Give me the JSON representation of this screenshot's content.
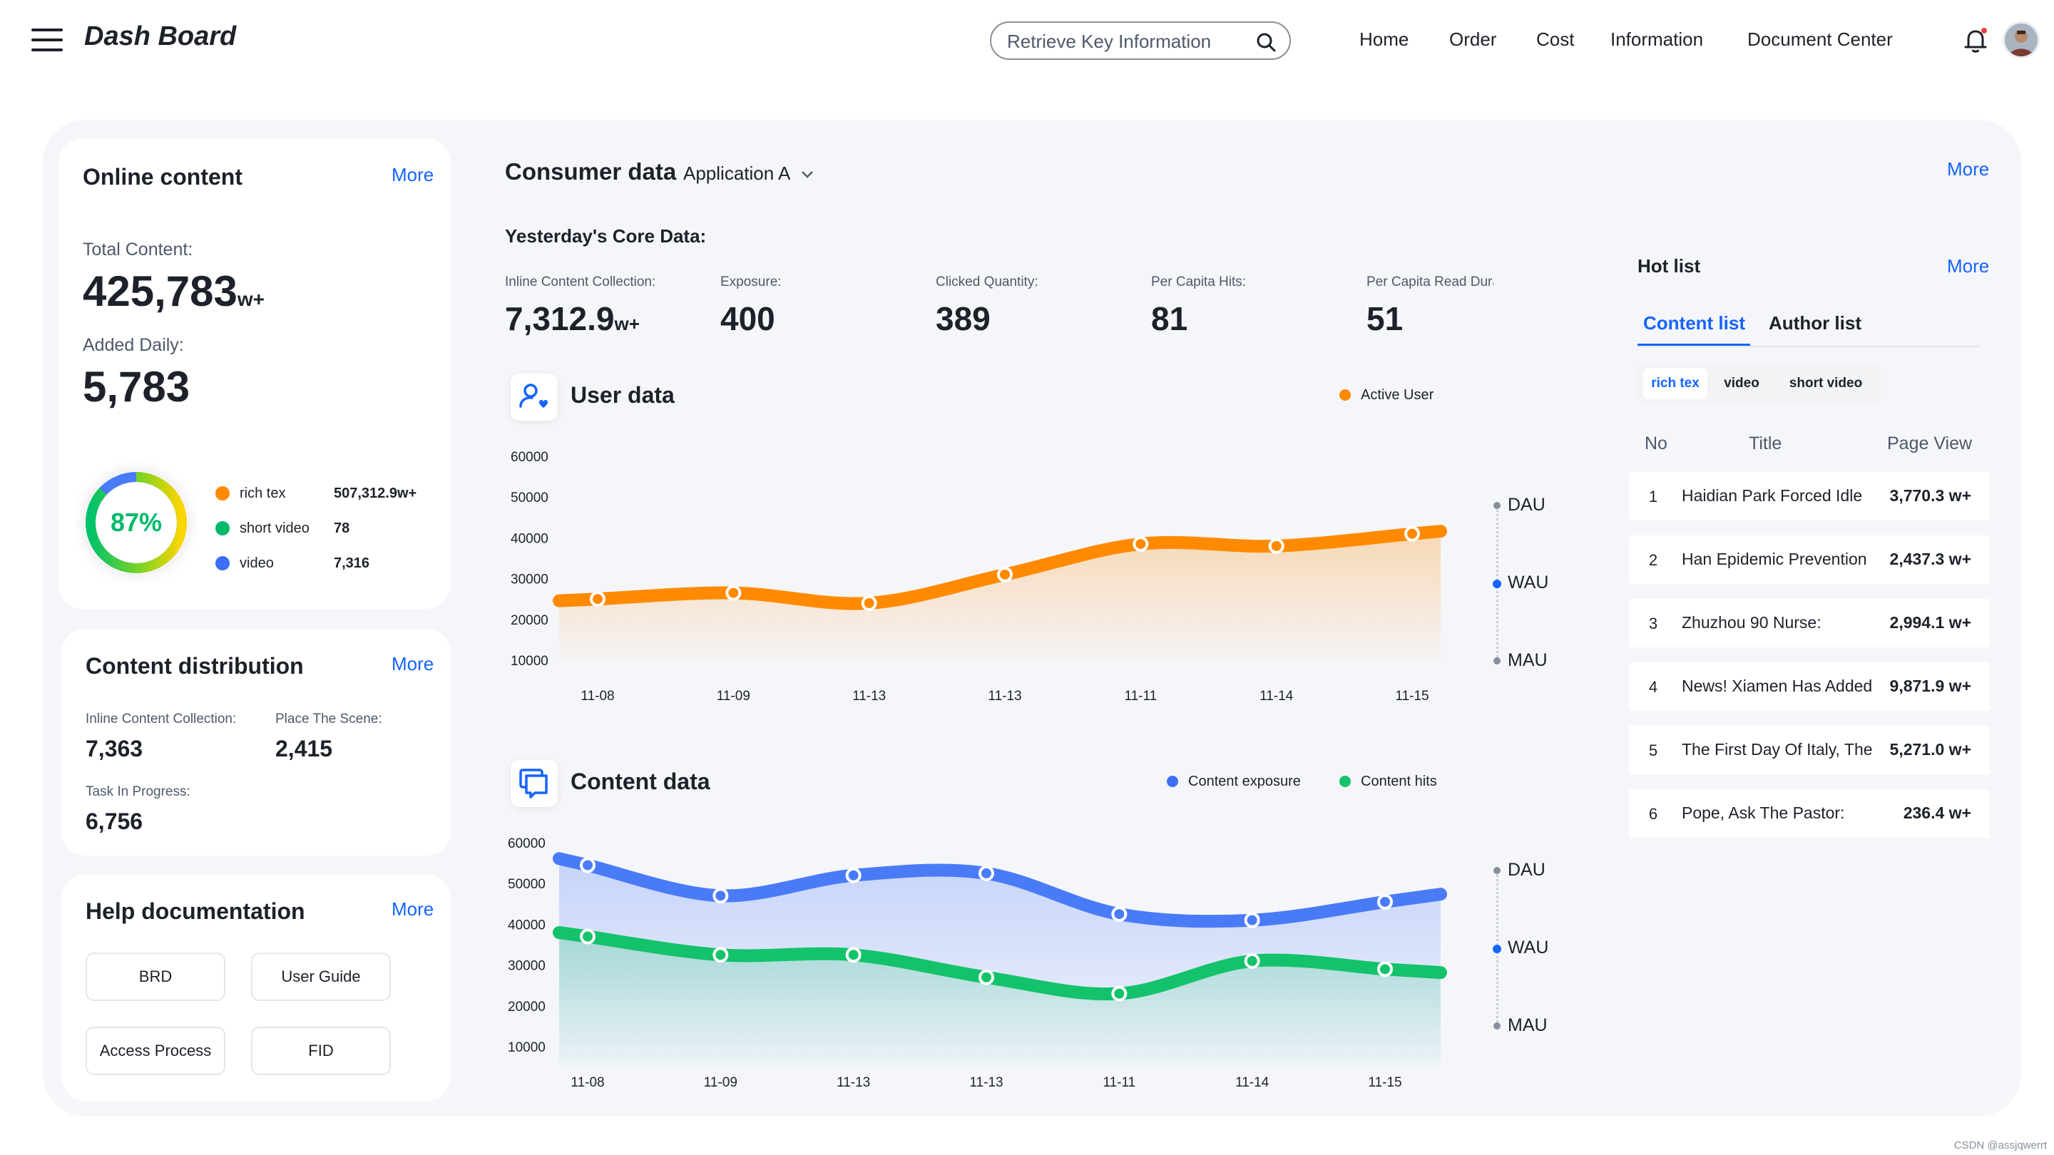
{
  "header": {
    "brand": "Dash Board",
    "search_placeholder": "Retrieve Key Information",
    "nav": [
      "Home",
      "Order",
      "Cost",
      "Information",
      "Document Center"
    ]
  },
  "online_content": {
    "title": "Online content",
    "more": "More",
    "total_label": "Total Content:",
    "total_value": "425,783",
    "total_unit": "w+",
    "daily_label": "Added Daily:",
    "daily_value": "5,783",
    "ring_percent_text": "87%",
    "ring_fraction": 0.87,
    "legend": [
      {
        "name": "rich tex",
        "value": "507,312.9",
        "unit": "w+",
        "color": "#ff8a00"
      },
      {
        "name": "short video",
        "value": "78",
        "unit": "",
        "color": "#00b96b"
      },
      {
        "name": "video",
        "value": "7,316",
        "unit": "",
        "color": "#3d6ef5"
      }
    ]
  },
  "content_distribution": {
    "title": "Content distribution",
    "more": "More",
    "items": [
      {
        "label": "Inline Content Collection:",
        "value": "7,363"
      },
      {
        "label": "Place The Scene:",
        "value": "2,415"
      },
      {
        "label": "Task In Progress:",
        "value": "6,756"
      }
    ]
  },
  "help_documentation": {
    "title": "Help documentation",
    "more": "More",
    "buttons": [
      "BRD",
      "User Guide",
      "Access Process",
      "FID"
    ]
  },
  "consumer": {
    "title": "Consumer data",
    "app_selector": "Application A",
    "more": "More",
    "core_title": "Yesterday's Core Data:",
    "core": [
      {
        "label": "Inline Content Collection:",
        "value": "7,312.9",
        "unit": "w+"
      },
      {
        "label": "Exposure:",
        "value": "400",
        "unit": ""
      },
      {
        "label": "Clicked Quantity:",
        "value": "389",
        "unit": ""
      },
      {
        "label": "Per Capita Hits:",
        "value": "81",
        "unit": ""
      },
      {
        "label": "Per Capita Read Dura",
        "value": "51",
        "unit": ""
      }
    ]
  },
  "user_chart_meta": {
    "title": "User data",
    "ranges": [
      "DAU",
      "WAU",
      "MAU"
    ],
    "active_range": "WAU"
  },
  "content_chart_meta": {
    "title": "Content data",
    "ranges": [
      "DAU",
      "WAU",
      "MAU"
    ],
    "active_range": "WAU"
  },
  "hot_list": {
    "title": "Hot list",
    "more": "More",
    "tabs": [
      "Content list",
      "Author list"
    ],
    "filters": [
      "rich tex",
      "video",
      "short video"
    ],
    "columns": [
      "No",
      "Title",
      "Page View"
    ],
    "rows": [
      {
        "no": "1",
        "title": "Haidian Park Forced Idle",
        "pv": "3,770.3 w+"
      },
      {
        "no": "2",
        "title": "Han Epidemic Prevention",
        "pv": "2,437.3 w+"
      },
      {
        "no": "3",
        "title": "Zhuzhou 90 Nurse:",
        "pv": "2,994.1 w+"
      },
      {
        "no": "4",
        "title": "News! Xiamen Has Added",
        "pv": "9,871.9 w+"
      },
      {
        "no": "5",
        "title": "The First Day Of Italy, The",
        "pv": "5,271.0 w+"
      },
      {
        "no": "6",
        "title": "Pope, Ask The Pastor:",
        "pv": "236.4 w+"
      }
    ]
  },
  "footer": "CSDN @assjqwerrt",
  "chart_data": [
    {
      "type": "area",
      "title": "User data",
      "categories": [
        "11-08",
        "11-09",
        "11-13",
        "11-13",
        "11-11",
        "11-14",
        "11-15"
      ],
      "yticks": [
        60000,
        50000,
        40000,
        30000,
        20000,
        10000
      ],
      "ylim": [
        10000,
        60000
      ],
      "legend_position": "top-right",
      "series": [
        {
          "name": "Active User",
          "color": "#ff8a00",
          "values": [
            25000,
            26500,
            24000,
            31000,
            38500,
            38000,
            41000
          ]
        }
      ]
    },
    {
      "type": "area",
      "title": "Content data",
      "categories": [
        "11-08",
        "11-09",
        "11-13",
        "11-13",
        "11-11",
        "11-14",
        "11-15"
      ],
      "yticks": [
        60000,
        50000,
        40000,
        30000,
        20000,
        10000
      ],
      "ylim": [
        10000,
        60000
      ],
      "legend_position": "top-right",
      "series": [
        {
          "name": "Content exposure",
          "color": "#4a7bf7",
          "values": [
            54500,
            47000,
            52000,
            52500,
            42500,
            41000,
            45500
          ]
        },
        {
          "name": "Content hits",
          "color": "#13c26b",
          "values": [
            37000,
            32500,
            32500,
            27000,
            23000,
            31000,
            29000
          ]
        }
      ]
    }
  ]
}
